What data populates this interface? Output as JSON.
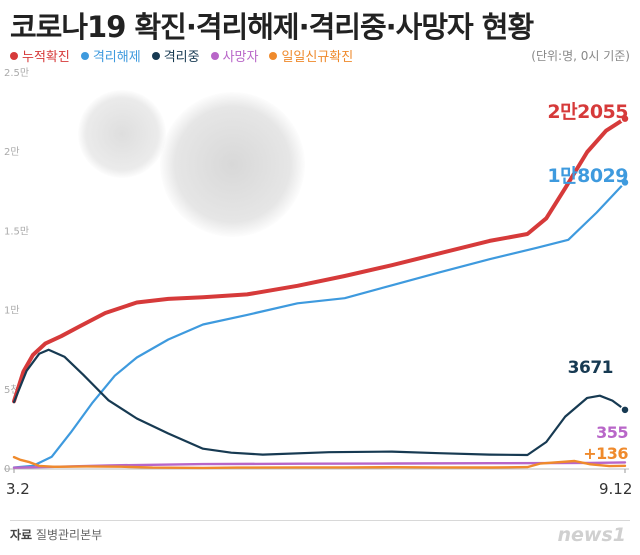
{
  "header": {
    "title": "코로나19 확진·격리해제·격리중·사망자 현황",
    "unit_note": "(단위:명, 0시 기준)"
  },
  "footer": {
    "source_label": "자료",
    "source_text": "질병관리본부",
    "brand": "news1"
  },
  "colors": {
    "confirmed": "#d63a3a",
    "released": "#3e9ade",
    "isolated": "#173a52",
    "deaths": "#b866c8",
    "daily": "#ef8a2c",
    "axis_text": "#aaaaaa"
  },
  "chart_data": {
    "type": "line",
    "title": "코로나19 확진·격리해제·격리중·사망자 현황",
    "xlabel": "",
    "ylabel": "",
    "x_start": "2020-03-02",
    "x_end": "2020-09-12",
    "x_tick_labels": [
      "3.2",
      "9.12"
    ],
    "ylim": [
      0,
      25000
    ],
    "y_ticks": [
      0,
      5000,
      10000,
      15000,
      20000,
      25000
    ],
    "y_tick_labels": [
      "0",
      "5천",
      "1만",
      "1.5만",
      "2만",
      "2.5만"
    ],
    "grid": false,
    "legend": "top-left",
    "series": [
      {
        "key": "confirmed",
        "name": "누적확진",
        "end_label": "2만2055",
        "points": [
          [
            "2020-03-02",
            4212
          ],
          [
            "2020-03-05",
            6088
          ],
          [
            "2020-03-08",
            7134
          ],
          [
            "2020-03-12",
            7869
          ],
          [
            "2020-03-17",
            8320
          ],
          [
            "2020-03-23",
            8961
          ],
          [
            "2020-03-31",
            9786
          ],
          [
            "2020-04-10",
            10450
          ],
          [
            "2020-04-20",
            10674
          ],
          [
            "2020-05-01",
            10774
          ],
          [
            "2020-05-15",
            10962
          ],
          [
            "2020-05-31",
            11503
          ],
          [
            "2020-06-15",
            12121
          ],
          [
            "2020-06-30",
            12800
          ],
          [
            "2020-07-15",
            13551
          ],
          [
            "2020-07-31",
            14336
          ],
          [
            "2020-08-12",
            14770
          ],
          [
            "2020-08-18",
            15761
          ],
          [
            "2020-08-24",
            17665
          ],
          [
            "2020-08-31",
            19947
          ],
          [
            "2020-09-06",
            21296
          ],
          [
            "2020-09-12",
            22055
          ]
        ]
      },
      {
        "key": "released",
        "name": "격리해제",
        "end_label": "1만8029",
        "points": [
          [
            "2020-03-02",
            30
          ],
          [
            "2020-03-08",
            130
          ],
          [
            "2020-03-14",
            714
          ],
          [
            "2020-03-20",
            2233
          ],
          [
            "2020-03-27",
            4144
          ],
          [
            "2020-04-03",
            5828
          ],
          [
            "2020-04-10",
            6973
          ],
          [
            "2020-04-20",
            8114
          ],
          [
            "2020-05-01",
            9059
          ],
          [
            "2020-05-15",
            9666
          ],
          [
            "2020-05-31",
            10398
          ],
          [
            "2020-06-15",
            10718
          ],
          [
            "2020-06-30",
            11537
          ],
          [
            "2020-07-15",
            12348
          ],
          [
            "2020-07-31",
            13183
          ],
          [
            "2020-08-15",
            13901
          ],
          [
            "2020-08-25",
            14406
          ],
          [
            "2020-09-03",
            16133
          ],
          [
            "2020-09-12",
            18029
          ]
        ]
      },
      {
        "key": "isolated",
        "name": "격리중",
        "end_label": "3671",
        "points": [
          [
            "2020-03-02",
            4162
          ],
          [
            "2020-03-06",
            6134
          ],
          [
            "2020-03-10",
            7212
          ],
          [
            "2020-03-13",
            7470
          ],
          [
            "2020-03-18",
            7024
          ],
          [
            "2020-03-24",
            5884
          ],
          [
            "2020-04-01",
            4275
          ],
          [
            "2020-04-10",
            3125
          ],
          [
            "2020-04-20",
            2179
          ],
          [
            "2020-05-01",
            1218
          ],
          [
            "2020-05-10",
            969
          ],
          [
            "2020-05-20",
            845
          ],
          [
            "2020-06-10",
            1000
          ],
          [
            "2020-06-30",
            1036
          ],
          [
            "2020-07-15",
            937
          ],
          [
            "2020-07-31",
            845
          ],
          [
            "2020-08-12",
            818
          ],
          [
            "2020-08-18",
            1641
          ],
          [
            "2020-08-24",
            3244
          ],
          [
            "2020-08-31",
            4426
          ],
          [
            "2020-09-04",
            4567
          ],
          [
            "2020-09-08",
            4252
          ],
          [
            "2020-09-12",
            3671
          ]
        ]
      },
      {
        "key": "deaths",
        "name": "사망자",
        "end_label": "355",
        "points": [
          [
            "2020-03-02",
            22
          ],
          [
            "2020-03-15",
            75
          ],
          [
            "2020-04-01",
            165
          ],
          [
            "2020-05-01",
            248
          ],
          [
            "2020-06-01",
            272
          ],
          [
            "2020-07-01",
            282
          ],
          [
            "2020-08-01",
            301
          ],
          [
            "2020-09-01",
            324
          ],
          [
            "2020-09-12",
            355
          ]
        ]
      },
      {
        "key": "daily",
        "name": "일일신규확진",
        "end_label": "+136",
        "points": [
          [
            "2020-03-02",
            686
          ],
          [
            "2020-03-04",
            516
          ],
          [
            "2020-03-07",
            367
          ],
          [
            "2020-03-10",
            131
          ],
          [
            "2020-03-15",
            76
          ],
          [
            "2020-03-25",
            100
          ],
          [
            "2020-04-05",
            81
          ],
          [
            "2020-04-15",
            27
          ],
          [
            "2020-05-01",
            9
          ],
          [
            "2020-05-12",
            27
          ],
          [
            "2020-06-01",
            35
          ],
          [
            "2020-06-15",
            37
          ],
          [
            "2020-07-01",
            51
          ],
          [
            "2020-07-15",
            39
          ],
          [
            "2020-08-01",
            31
          ],
          [
            "2020-08-12",
            54
          ],
          [
            "2020-08-16",
            279
          ],
          [
            "2020-08-27",
            441
          ],
          [
            "2020-09-01",
            235
          ],
          [
            "2020-09-07",
            119
          ],
          [
            "2020-09-12",
            136
          ]
        ]
      }
    ]
  }
}
